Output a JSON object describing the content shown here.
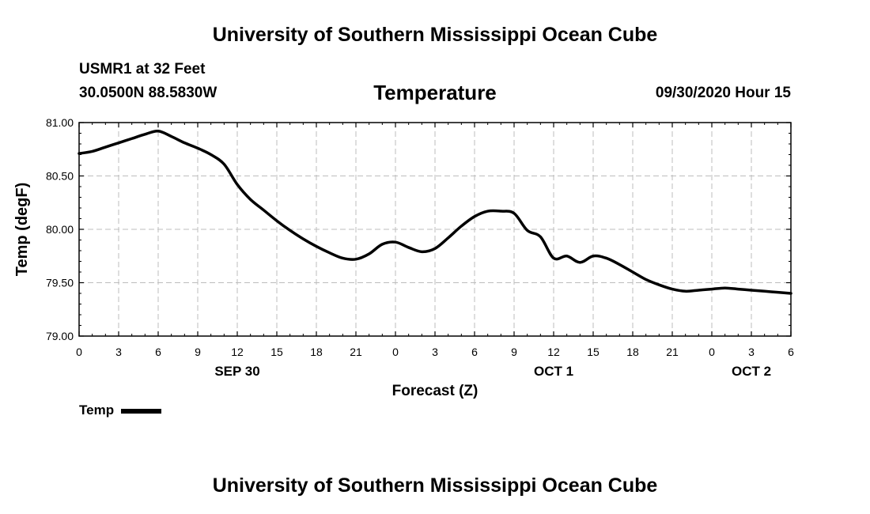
{
  "page": {
    "top_title": "University of Southern Mississippi Ocean Cube",
    "bottom_title": "University of Southern Mississippi Ocean Cube",
    "station": "USMR1 at 32 Feet",
    "coordinates": "30.0500N 88.5830W",
    "datetime": "09/30/2020 Hour 15"
  },
  "chart_data": {
    "type": "line",
    "title": "Temperature",
    "xlabel": "Forecast (Z)",
    "ylabel": "Temp (degF)",
    "ylim": [
      79.0,
      81.0
    ],
    "yticks": [
      79.0,
      79.5,
      80.0,
      80.5,
      81.0
    ],
    "ytick_labels": [
      "79.00",
      "79.50",
      "80.00",
      "80.50",
      "81.00"
    ],
    "xlim": [
      0,
      54
    ],
    "xticks": [
      0,
      3,
      6,
      9,
      12,
      15,
      18,
      21,
      24,
      27,
      30,
      33,
      36,
      39,
      42,
      45,
      48,
      51,
      54
    ],
    "xtick_labels": [
      "0",
      "3",
      "6",
      "9",
      "12",
      "15",
      "18",
      "21",
      "0",
      "3",
      "6",
      "9",
      "12",
      "15",
      "18",
      "21",
      "0",
      "3",
      "6"
    ],
    "date_labels": [
      {
        "text": "SEP 30",
        "x": 12
      },
      {
        "text": "OCT 1",
        "x": 36
      },
      {
        "text": "OCT 2",
        "x": 51
      }
    ],
    "grid": true,
    "legend": [
      {
        "name": "Temp",
        "position": "bottom-left"
      }
    ],
    "series": [
      {
        "name": "Temp",
        "x": [
          0,
          1,
          2,
          3,
          4,
          5,
          6,
          7,
          8,
          9,
          10,
          11,
          12,
          13,
          14,
          15,
          16,
          17,
          18,
          19,
          20,
          21,
          22,
          23,
          24,
          25,
          26,
          27,
          28,
          29,
          30,
          31,
          32,
          33,
          34,
          35,
          36,
          37,
          38,
          39,
          40,
          41,
          42,
          43,
          44,
          45,
          46,
          47,
          48,
          49,
          50,
          51,
          52,
          53,
          54
        ],
        "values": [
          80.71,
          80.73,
          80.77,
          80.81,
          80.85,
          80.89,
          80.92,
          80.87,
          80.81,
          80.76,
          80.7,
          80.61,
          80.42,
          80.28,
          80.18,
          80.08,
          79.99,
          79.91,
          79.84,
          79.78,
          79.73,
          79.72,
          79.77,
          79.86,
          79.88,
          79.83,
          79.79,
          79.82,
          79.92,
          80.03,
          80.12,
          80.17,
          80.17,
          80.15,
          79.99,
          79.93,
          79.73,
          79.75,
          79.69,
          79.75,
          79.73,
          79.67,
          79.6,
          79.53,
          79.48,
          79.44,
          79.42,
          79.43,
          79.44,
          79.45,
          79.44,
          79.43,
          79.42,
          79.41,
          79.4
        ]
      }
    ]
  }
}
